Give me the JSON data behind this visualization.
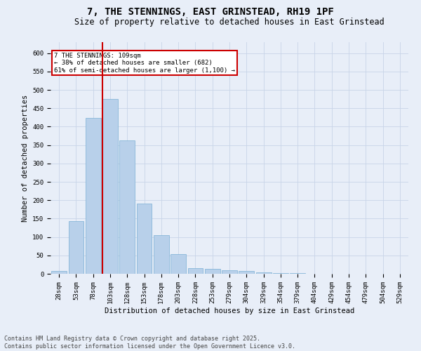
{
  "title": "7, THE STENNINGS, EAST GRINSTEAD, RH19 1PF",
  "subtitle": "Size of property relative to detached houses in East Grinstead",
  "xlabel": "Distribution of detached houses by size in East Grinstead",
  "ylabel": "Number of detached properties",
  "categories": [
    "28sqm",
    "53sqm",
    "78sqm",
    "103sqm",
    "128sqm",
    "153sqm",
    "178sqm",
    "203sqm",
    "228sqm",
    "253sqm",
    "279sqm",
    "304sqm",
    "329sqm",
    "354sqm",
    "379sqm",
    "404sqm",
    "429sqm",
    "454sqm",
    "479sqm",
    "504sqm",
    "529sqm"
  ],
  "values": [
    8,
    143,
    424,
    475,
    362,
    191,
    105,
    53,
    16,
    13,
    10,
    8,
    4,
    2,
    1,
    0,
    0,
    0,
    0,
    0,
    0
  ],
  "bar_color": "#b8d0ea",
  "bar_edge_color": "#7aafd4",
  "grid_color": "#c8d4e8",
  "background_color": "#e8eef8",
  "vline_color": "#cc0000",
  "vline_index": 3,
  "annotation_text": "7 THE STENNINGS: 109sqm\n← 38% of detached houses are smaller (682)\n61% of semi-detached houses are larger (1,100) →",
  "annotation_box_color": "#cc0000",
  "ylim": [
    0,
    630
  ],
  "yticks": [
    0,
    50,
    100,
    150,
    200,
    250,
    300,
    350,
    400,
    450,
    500,
    550,
    600
  ],
  "footer": "Contains HM Land Registry data © Crown copyright and database right 2025.\nContains public sector information licensed under the Open Government Licence v3.0.",
  "title_fontsize": 10,
  "subtitle_fontsize": 8.5,
  "label_fontsize": 7.5,
  "tick_fontsize": 6.5,
  "footer_fontsize": 6,
  "annotation_fontsize": 6.5
}
